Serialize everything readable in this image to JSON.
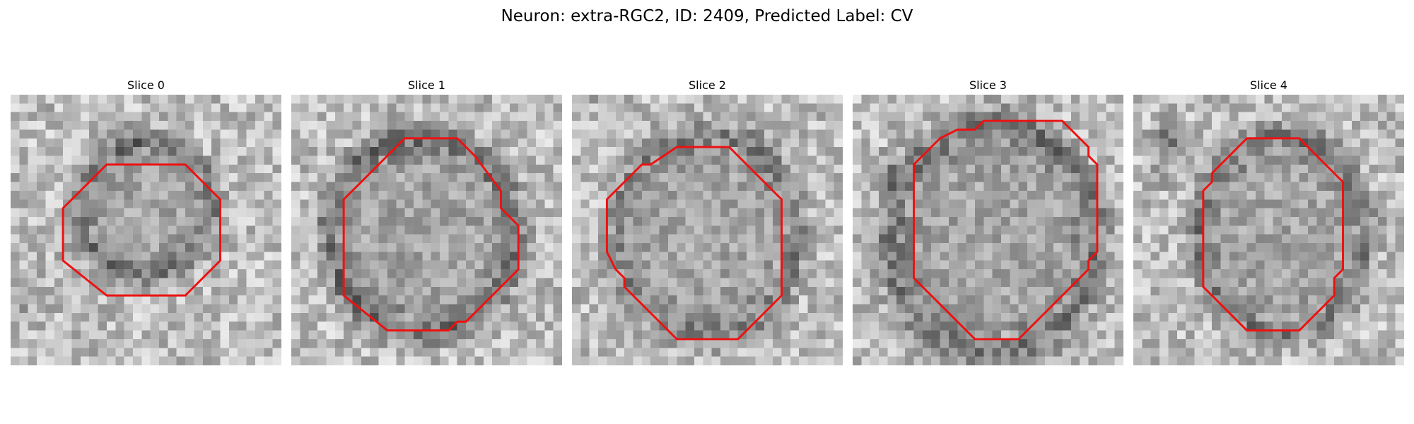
{
  "figure": {
    "title": "Neuron: extra-RGC2, ID: 2409, Predicted Label: CV"
  },
  "contour_color": "#ee1111",
  "grid_size": 31,
  "panels": [
    {
      "title": "Slice 0",
      "texture": "image-slice-0",
      "ring": {
        "cx": 15.5,
        "cy": 13.0,
        "rx": 7.5,
        "ry": 7.5,
        "dark": 70,
        "spots": [
          [
            14,
            5,
            3,
            40
          ],
          [
            1,
            25,
            3,
            40
          ]
        ]
      },
      "contour": [
        [
          11,
          8
        ],
        [
          20,
          8
        ],
        [
          24,
          12
        ],
        [
          24,
          19
        ],
        [
          20,
          23
        ],
        [
          11,
          23
        ],
        [
          6,
          19
        ],
        [
          6,
          13
        ]
      ]
    },
    {
      "title": "Slice 1",
      "texture": "image-slice-1",
      "ring": {
        "cx": 15.0,
        "cy": 16.0,
        "rx": 10.5,
        "ry": 11.0,
        "dark": 75,
        "spots": []
      },
      "contour": [
        [
          13,
          5
        ],
        [
          19,
          5
        ],
        [
          21,
          7
        ],
        [
          24,
          11
        ],
        [
          24,
          13
        ],
        [
          26,
          15
        ],
        [
          26,
          20
        ],
        [
          20,
          26
        ],
        [
          19,
          26
        ],
        [
          18,
          27
        ],
        [
          11,
          27
        ],
        [
          6,
          23
        ],
        [
          6,
          12
        ],
        [
          10,
          8
        ]
      ]
    },
    {
      "title": "Slice 2",
      "texture": "image-slice-2",
      "ring": {
        "cx": 15.5,
        "cy": 16.0,
        "rx": 10.0,
        "ry": 11.5,
        "dark": 60,
        "spots": [
          [
            1,
            0,
            2,
            60
          ]
        ]
      },
      "contour": [
        [
          12,
          6
        ],
        [
          18,
          6
        ],
        [
          23,
          11
        ],
        [
          24,
          12
        ],
        [
          24,
          23
        ],
        [
          23,
          24
        ],
        [
          19,
          28
        ],
        [
          12,
          28
        ],
        [
          6,
          22
        ],
        [
          6,
          21
        ],
        [
          5,
          20
        ],
        [
          4,
          18
        ],
        [
          4,
          12
        ],
        [
          8,
          8
        ],
        [
          9,
          8
        ]
      ]
    },
    {
      "title": "Slice 3",
      "texture": "image-slice-3",
      "ring": {
        "cx": 16.0,
        "cy": 16.5,
        "rx": 11.5,
        "ry": 13.0,
        "dark": 70,
        "spots": [
          [
            4,
            9,
            3,
            50
          ]
        ]
      },
      "contour": [
        [
          15,
          3
        ],
        [
          24,
          3
        ],
        [
          26,
          5
        ],
        [
          27,
          6
        ],
        [
          27,
          7
        ],
        [
          28,
          8
        ],
        [
          28,
          18
        ],
        [
          27,
          19
        ],
        [
          27,
          20
        ],
        [
          23,
          24
        ],
        [
          22,
          25
        ],
        [
          21,
          26
        ],
        [
          19,
          28
        ],
        [
          14,
          28
        ],
        [
          8,
          22
        ],
        [
          7,
          21
        ],
        [
          7,
          8
        ],
        [
          9,
          6
        ],
        [
          10,
          5
        ],
        [
          12,
          4
        ],
        [
          14,
          4
        ]
      ]
    },
    {
      "title": "Slice 4",
      "texture": "image-slice-4",
      "ring": {
        "cx": 17.0,
        "cy": 16.0,
        "rx": 9.5,
        "ry": 11.0,
        "dark": 65,
        "spots": [
          [
            4,
            5,
            3,
            70
          ],
          [
            3,
            9,
            2,
            50
          ]
        ]
      },
      "contour": [
        [
          15,
          5
        ],
        [
          19,
          5
        ],
        [
          24,
          10
        ],
        [
          24,
          20
        ],
        [
          23,
          21
        ],
        [
          23,
          23
        ],
        [
          19,
          27
        ],
        [
          13,
          27
        ],
        [
          8,
          22
        ],
        [
          8,
          11
        ],
        [
          9,
          10
        ],
        [
          9,
          9
        ],
        [
          13,
          5
        ]
      ]
    }
  ]
}
